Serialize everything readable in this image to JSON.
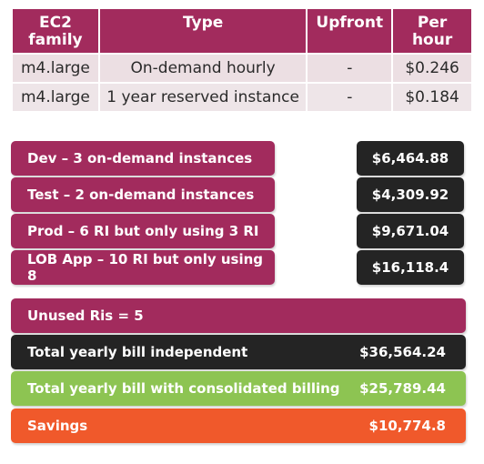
{
  "pricing_table": {
    "headers": [
      "EC2 family",
      "Type",
      "Upfront",
      "Per hour"
    ],
    "header_lines": {
      "family": [
        "EC2",
        "family"
      ],
      "type": [
        "Type"
      ],
      "upfront": [
        "Upfront"
      ],
      "per_hour": [
        "Per",
        "hour"
      ]
    },
    "rows": [
      {
        "family": "m4.large",
        "type": "On-demand hourly",
        "upfront": "-",
        "per_hour": "$0.246"
      },
      {
        "family": "m4.large",
        "type": "1 year reserved instance",
        "upfront": "-",
        "per_hour": "$0.184"
      }
    ]
  },
  "environments": [
    {
      "label": "Dev – 3 on-demand instances",
      "value": "$6,464.88"
    },
    {
      "label": "Test – 2 on-demand instances",
      "value": "$4,309.92"
    },
    {
      "label": "Prod – 6 RI but only using 3 RI",
      "value": "$9,671.04"
    },
    {
      "label": "LOB App – 10 RI but only using 8",
      "value": "$16,118.4"
    }
  ],
  "unused": {
    "label": "Unused Ris = 5"
  },
  "totals": {
    "independent": {
      "label": "Total yearly bill independent",
      "value": "$36,564.24"
    },
    "consolidated": {
      "label": "Total yearly bill with consolidated billing",
      "value": "$25,789.44"
    },
    "savings": {
      "label": "Savings",
      "value": "$10,774.8"
    }
  },
  "colors": {
    "magenta": "#a22b5d",
    "dark": "#242424",
    "green": "#8dc452",
    "orange": "#f0592b",
    "table_row_bg": "#ecdfe3"
  }
}
